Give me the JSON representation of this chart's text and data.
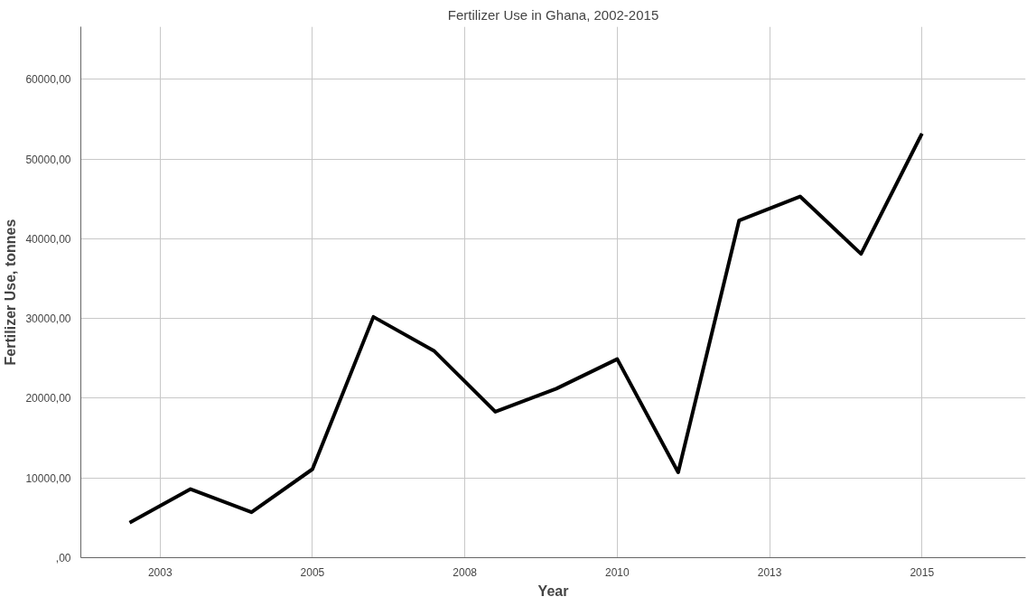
{
  "chart_data": {
    "type": "line",
    "title": "Fertilizer Use in Ghana, 2002-2015",
    "xlabel": "Year",
    "ylabel": "Fertilizer Use, tonnes",
    "x": [
      2002,
      2003,
      2004,
      2005,
      2006,
      2007,
      2008,
      2009,
      2010,
      2011,
      2012,
      2013,
      2014,
      2015
    ],
    "series": [
      {
        "color": "#000000",
        "values": [
          4400,
          8600,
          5700,
          11100,
          30200,
          25900,
          18300,
          21200,
          24900,
          10700,
          42300,
          45300,
          38100,
          53200
        ]
      }
    ],
    "xlim": [
      2001.2,
      2016.7
    ],
    "xticks": [
      {
        "value": 2002.5,
        "label": "2003"
      },
      {
        "value": 2005,
        "label": "2005"
      },
      {
        "value": 2007.5,
        "label": "2008"
      },
      {
        "value": 2010,
        "label": "2010"
      },
      {
        "value": 2012.5,
        "label": "2013"
      },
      {
        "value": 2015,
        "label": "2015"
      }
    ],
    "ylim": [
      0,
      66600
    ],
    "yticks": [
      {
        "value": 0,
        "label": ",00"
      },
      {
        "value": 10000,
        "label": "10000,00"
      },
      {
        "value": 20000,
        "label": "20000,00"
      },
      {
        "value": 30000,
        "label": "30000,00"
      },
      {
        "value": 40000,
        "label": "40000,00"
      },
      {
        "value": 50000,
        "label": "50000,00"
      },
      {
        "value": 60000,
        "label": "60000,00"
      }
    ],
    "grid": true,
    "marker": "none",
    "line_style": "solid"
  }
}
